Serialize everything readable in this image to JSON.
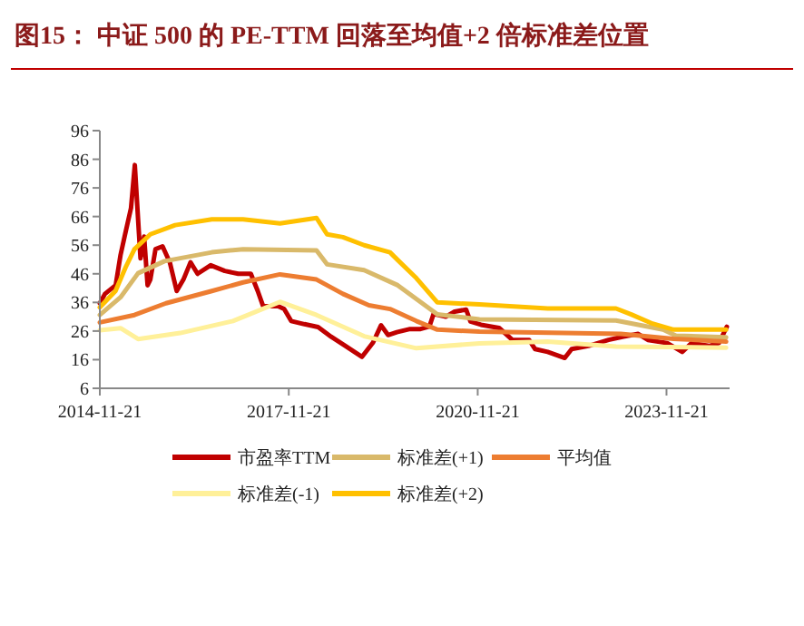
{
  "chart_data": {
    "type": "line",
    "title": "图15： 中证 500 的 PE-TTM 回落至均值+2 倍标准差位置",
    "xlim": [
      "2014-11-21",
      "2024-11-21"
    ],
    "xticks": [
      {
        "value": "2014-11-21",
        "label": "2014-11-21"
      },
      {
        "value": "2017-11-21",
        "label": "2017-11-21"
      },
      {
        "value": "2020-11-21",
        "label": "2020-11-21"
      },
      {
        "value": "2023-11-21",
        "label": "2023-11-21"
      }
    ],
    "ylim": [
      6,
      96
    ],
    "yticks": [
      6,
      16,
      26,
      36,
      46,
      56,
      66,
      76,
      86,
      96
    ],
    "grid": false,
    "legend": "bottom",
    "line_style": "solid",
    "marker": "none",
    "series": [
      {
        "name": "市盈率TTM",
        "color": "#c00000",
        "x": [
          "2014-11-21",
          "2014-12-21",
          "2015-02-21",
          "2015-03-21",
          "2015-04-21",
          "2015-05-21",
          "2015-06-12",
          "2015-07-05",
          "2015-07-15",
          "2015-08-05",
          "2015-08-25",
          "2015-09-10",
          "2015-10-10",
          "2015-11-20",
          "2016-01-01",
          "2016-02-10",
          "2016-03-20",
          "2016-04-30",
          "2016-06-10",
          "2016-08-25",
          "2016-11-15",
          "2017-02-01",
          "2017-04-15",
          "2017-05-25",
          "2017-06-25",
          "2017-09-20",
          "2017-10-25",
          "2017-12-05",
          "2018-02-20",
          "2018-05-10",
          "2018-07-25",
          "2018-10-10",
          "2018-12-25",
          "2019-01-20",
          "2019-03-25",
          "2019-05-10",
          "2019-06-20",
          "2019-08-10",
          "2019-10-25",
          "2019-12-25",
          "2020-02-15",
          "2020-03-10",
          "2020-05-20",
          "2020-07-10",
          "2020-09-15",
          "2020-10-10",
          "2020-12-10",
          "2021-03-25",
          "2021-06-10",
          "2021-09-15",
          "2021-10-20",
          "2022-01-01",
          "2022-04-10",
          "2022-05-20",
          "2022-08-25",
          "2022-12-20",
          "2023-03-10",
          "2023-06-10",
          "2023-08-05",
          "2023-11-25",
          "2024-02-20",
          "2024-04-15",
          "2024-07-25",
          "2024-09-20",
          "2024-11-05"
        ],
        "values": [
          35.7,
          39,
          42,
          52.5,
          61,
          69,
          84,
          61,
          51.4,
          59,
          42,
          44,
          54.6,
          55.6,
          50,
          40,
          44,
          50,
          46,
          49,
          47,
          46,
          46,
          40,
          34.7,
          34.7,
          33.7,
          29.5,
          28.4,
          27.4,
          24,
          21,
          18,
          17,
          22,
          28,
          24.6,
          25.6,
          26.7,
          26.7,
          27.6,
          32,
          31,
          32.8,
          33.5,
          29.3,
          28.2,
          27.1,
          22.9,
          22.9,
          19.7,
          18.7,
          16.6,
          19.7,
          20.8,
          22.9,
          24,
          25,
          22.9,
          21.8,
          18.7,
          21.8,
          20.8,
          21.8,
          27.5
        ]
      },
      {
        "name": "标准差(+1)",
        "color": "#d9b96a",
        "x": [
          "2014-11-21",
          "2015-03-21",
          "2015-07-01",
          "2015-12-01",
          "2016-09-01",
          "2017-03-01",
          "2018-05-01",
          "2018-07-01",
          "2019-02-01",
          "2019-08-15",
          "2020-04-01",
          "2020-12-01",
          "2023-02-01",
          "2023-11-01",
          "2024-01-15",
          "2024-11-01"
        ],
        "values": [
          31.6,
          37.8,
          46.2,
          50.4,
          53.5,
          54.6,
          54.2,
          49.3,
          47.3,
          42,
          31.8,
          30.1,
          29.7,
          26.5,
          24.4,
          23.8
        ]
      },
      {
        "name": "平均值",
        "color": "#ed7d31",
        "x": [
          "2014-11-21",
          "2015-06-10",
          "2015-12-10",
          "2016-09-01",
          "2017-03-01",
          "2017-10-01",
          "2018-05-01",
          "2018-10-01",
          "2019-03-01",
          "2019-07-01",
          "2019-12-01",
          "2020-04-01",
          "2020-12-01",
          "2023-03-01",
          "2024-01-01",
          "2024-11-01"
        ],
        "values": [
          29,
          31.6,
          35.7,
          40,
          43,
          45.8,
          44,
          39,
          35,
          33.7,
          29.5,
          26.5,
          25.8,
          25,
          23.3,
          22.3
        ]
      },
      {
        "name": "标准差(-1)",
        "color": "#fff099",
        "x": [
          "2014-11-21",
          "2015-03-21",
          "2015-07-01",
          "2016-03-01",
          "2017-01-01",
          "2017-10-01",
          "2018-05-01",
          "2019-02-01",
          "2019-12-01",
          "2020-12-01",
          "2022-01-01",
          "2023-02-01",
          "2024-11-01"
        ],
        "values": [
          26.3,
          27,
          23.2,
          25.3,
          29.5,
          36.2,
          31.6,
          24.2,
          20,
          21.7,
          22.3,
          20.6,
          20.2
        ]
      },
      {
        "name": "标准差(+2)",
        "color": "#ffc000",
        "x": [
          "2014-11-21",
          "2015-02-20",
          "2015-04-20",
          "2015-06-10",
          "2015-09-10",
          "2016-02-01",
          "2016-09-01",
          "2017-03-01",
          "2017-10-01",
          "2018-05-01",
          "2018-07-01",
          "2018-10-01",
          "2019-02-01",
          "2019-07-01",
          "2019-08-15",
          "2019-12-01",
          "2020-04-01",
          "2020-12-01",
          "2022-01-01",
          "2023-02-01",
          "2023-05-01",
          "2023-09-01",
          "2024-01-01",
          "2024-11-01"
        ],
        "values": [
          34.3,
          40,
          48.3,
          54.6,
          59.8,
          63,
          65,
          65,
          63.6,
          65.5,
          59.8,
          58.8,
          56,
          53.5,
          50.8,
          44.5,
          36,
          35.3,
          33.9,
          33.9,
          31.8,
          28.6,
          26.5,
          26.5
        ]
      }
    ]
  }
}
